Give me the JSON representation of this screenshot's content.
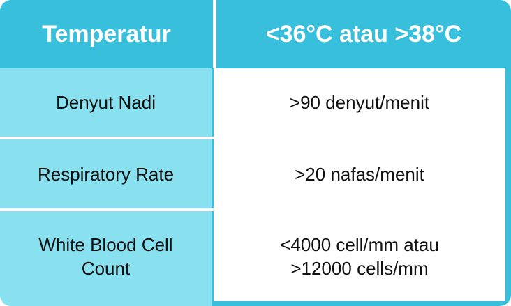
{
  "table": {
    "header": [
      "Temperatur",
      "<36°C atau >38°C"
    ],
    "rows": [
      [
        "Denyut Nadi",
        ">90 denyut/menit"
      ],
      [
        "Respiratory Rate",
        ">20 nafas/menit"
      ],
      [
        "White Blood Cell Count",
        "<4000 cell/mm atau >12000 cells/mm"
      ]
    ]
  }
}
